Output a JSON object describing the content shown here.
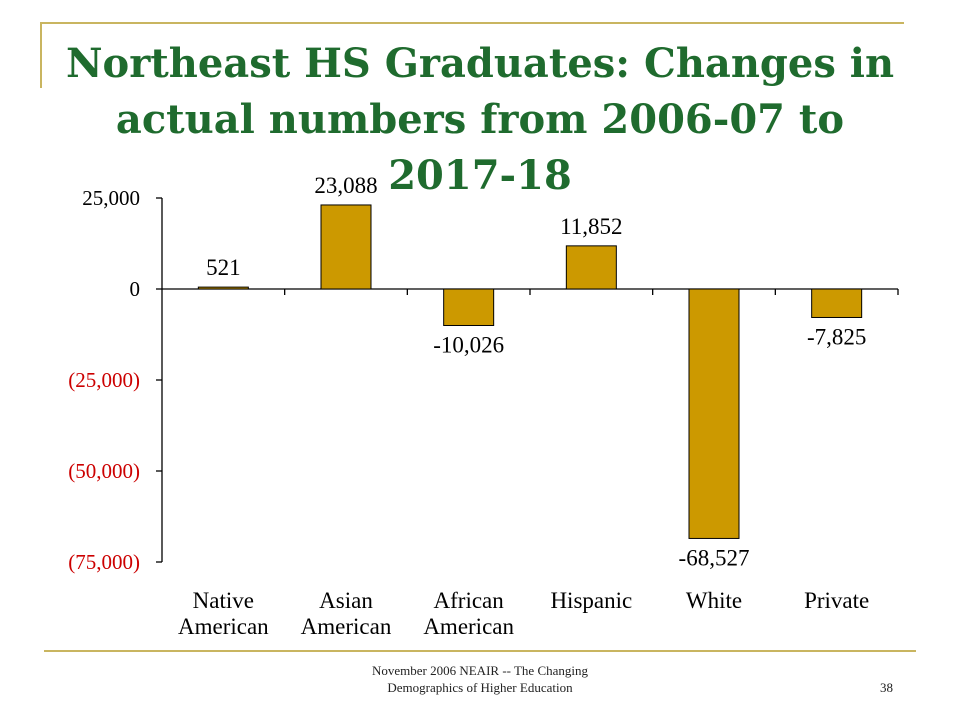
{
  "slide": {
    "title": "Northeast HS Graduates:  Changes in actual numbers from 2006-07 to 2017-18",
    "footer_line1": "November 2006 NEAIR -- The Changing",
    "footer_line2": "Demographics of Higher Education",
    "page_number": "38"
  },
  "colors": {
    "bar": "#cc9900",
    "title": "#1f6b2e",
    "negative_tick": "#cc0000",
    "accent_line": "#c9b560"
  },
  "chart_data": {
    "type": "bar",
    "title": "",
    "xlabel": "",
    "ylabel": "",
    "categories": [
      [
        "Native",
        "American"
      ],
      [
        "Asian",
        "American"
      ],
      [
        "African",
        "American"
      ],
      [
        "Hispanic"
      ],
      [
        "White"
      ],
      [
        "Private"
      ]
    ],
    "values": [
      521,
      23088,
      -10026,
      11852,
      -68527,
      -7825
    ],
    "data_labels": [
      "521",
      "23,088",
      "-10,026",
      "11,852",
      "-68,527",
      "-7,825"
    ],
    "ylim": [
      -75000,
      25000
    ],
    "yticks": [
      {
        "value": 25000,
        "label": "25,000"
      },
      {
        "value": 0,
        "label": "0"
      },
      {
        "value": -25000,
        "label": "(25,000)"
      },
      {
        "value": -50000,
        "label": "(50,000)"
      },
      {
        "value": -75000,
        "label": "(75,000)"
      }
    ],
    "grid": false,
    "legend": "none"
  }
}
